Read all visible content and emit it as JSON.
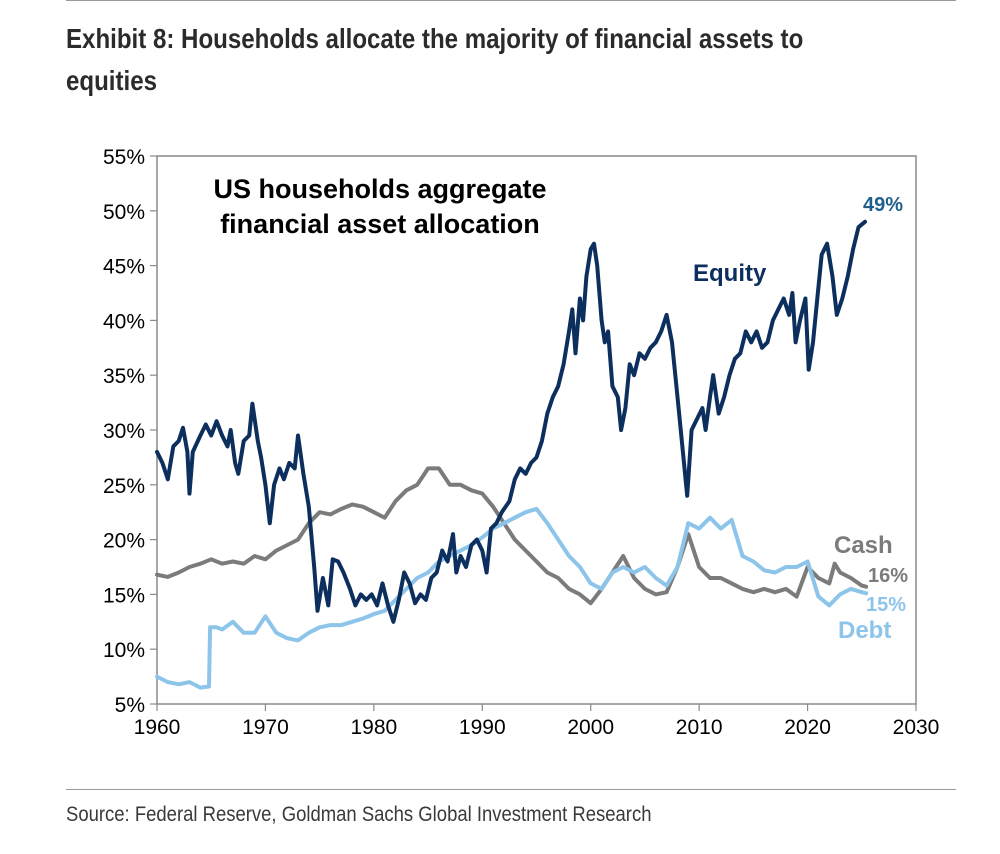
{
  "exhibit": {
    "title": "Exhibit 8: Households allocate the majority of financial assets to equities",
    "source": "Source: Federal Reserve, Goldman Sachs Global Investment Research"
  },
  "chart_data": {
    "type": "line",
    "title": "US households aggregate financial asset allocation",
    "xlabel": "",
    "ylabel": "",
    "xlim": [
      1960,
      2030
    ],
    "ylim": [
      5,
      55
    ],
    "x_ticks": [
      "1960",
      "1970",
      "1980",
      "1990",
      "2000",
      "2010",
      "2020",
      "2030"
    ],
    "y_ticks": [
      "5%",
      "10%",
      "15%",
      "20%",
      "25%",
      "30%",
      "35%",
      "40%",
      "45%",
      "50%",
      "55%"
    ],
    "grid": false,
    "series": [
      {
        "name": "Equity",
        "color": "#0d2f5e",
        "end_label": "49%",
        "points": [
          [
            1960,
            28
          ],
          [
            1960.5,
            27
          ],
          [
            1961,
            25.5
          ],
          [
            1961.5,
            28.5
          ],
          [
            1962,
            29
          ],
          [
            1962.4,
            30.2
          ],
          [
            1962.8,
            28
          ],
          [
            1963,
            24.2
          ],
          [
            1963.3,
            28
          ],
          [
            1964,
            29.5
          ],
          [
            1964.5,
            30.5
          ],
          [
            1965,
            29.5
          ],
          [
            1965.5,
            30.8
          ],
          [
            1966,
            29.5
          ],
          [
            1966.5,
            28.5
          ],
          [
            1966.8,
            30
          ],
          [
            1967.2,
            27
          ],
          [
            1967.5,
            26
          ],
          [
            1968,
            29
          ],
          [
            1968.5,
            29.5
          ],
          [
            1968.8,
            32.4
          ],
          [
            1969.3,
            29
          ],
          [
            1969.6,
            27.5
          ],
          [
            1970,
            25
          ],
          [
            1970.4,
            21.5
          ],
          [
            1970.8,
            25
          ],
          [
            1971.3,
            26.5
          ],
          [
            1971.7,
            25.5
          ],
          [
            1972.2,
            27
          ],
          [
            1972.7,
            26.5
          ],
          [
            1973,
            29.5
          ],
          [
            1973.5,
            26
          ],
          [
            1974,
            23
          ],
          [
            1974.5,
            17.5
          ],
          [
            1974.8,
            13.5
          ],
          [
            1975.3,
            16.5
          ],
          [
            1975.8,
            14
          ],
          [
            1976.2,
            18.2
          ],
          [
            1976.7,
            18
          ],
          [
            1977.2,
            17
          ],
          [
            1977.8,
            15.5
          ],
          [
            1978.3,
            14
          ],
          [
            1978.8,
            15
          ],
          [
            1979.3,
            14.5
          ],
          [
            1979.8,
            15
          ],
          [
            1980.3,
            14
          ],
          [
            1980.8,
            16
          ],
          [
            1981.3,
            14
          ],
          [
            1981.8,
            12.5
          ],
          [
            1982.3,
            14.5
          ],
          [
            1982.8,
            17
          ],
          [
            1983.3,
            16
          ],
          [
            1983.8,
            14.2
          ],
          [
            1984.3,
            15
          ],
          [
            1984.8,
            14.5
          ],
          [
            1985.3,
            16.5
          ],
          [
            1985.8,
            17
          ],
          [
            1986.3,
            19
          ],
          [
            1986.8,
            18
          ],
          [
            1987.3,
            20.5
          ],
          [
            1987.6,
            17
          ],
          [
            1988,
            18.5
          ],
          [
            1988.5,
            17.5
          ],
          [
            1989,
            19.5
          ],
          [
            1989.5,
            20
          ],
          [
            1990,
            19
          ],
          [
            1990.4,
            17
          ],
          [
            1990.8,
            21
          ],
          [
            1991.3,
            21.5
          ],
          [
            1991.8,
            22.5
          ],
          [
            1992.5,
            23.5
          ],
          [
            1993,
            25.5
          ],
          [
            1993.5,
            26.5
          ],
          [
            1994,
            26
          ],
          [
            1994.5,
            27
          ],
          [
            1995,
            27.5
          ],
          [
            1995.5,
            29
          ],
          [
            1996,
            31.5
          ],
          [
            1996.5,
            33
          ],
          [
            1997,
            34
          ],
          [
            1997.5,
            36
          ],
          [
            1998,
            39
          ],
          [
            1998.3,
            41
          ],
          [
            1998.6,
            37
          ],
          [
            1999,
            42
          ],
          [
            1999.3,
            40
          ],
          [
            1999.6,
            44
          ],
          [
            2000,
            46.5
          ],
          [
            2000.3,
            47
          ],
          [
            2000.6,
            45
          ],
          [
            2001,
            40
          ],
          [
            2001.3,
            38
          ],
          [
            2001.6,
            39
          ],
          [
            2002,
            34
          ],
          [
            2002.5,
            33
          ],
          [
            2002.8,
            30
          ],
          [
            2003.2,
            32
          ],
          [
            2003.6,
            36
          ],
          [
            2004,
            35
          ],
          [
            2004.5,
            37
          ],
          [
            2005,
            36.5
          ],
          [
            2005.5,
            37.5
          ],
          [
            2006,
            38
          ],
          [
            2006.5,
            39
          ],
          [
            2007,
            40.5
          ],
          [
            2007.5,
            38
          ],
          [
            2008,
            33
          ],
          [
            2008.5,
            28
          ],
          [
            2008.9,
            24
          ],
          [
            2009.3,
            30
          ],
          [
            2009.8,
            31
          ],
          [
            2010.3,
            32
          ],
          [
            2010.6,
            30
          ],
          [
            2011,
            33
          ],
          [
            2011.3,
            35
          ],
          [
            2011.8,
            31.5
          ],
          [
            2012.3,
            33
          ],
          [
            2012.8,
            35
          ],
          [
            2013.3,
            36.5
          ],
          [
            2013.8,
            37
          ],
          [
            2014.3,
            39
          ],
          [
            2014.8,
            38
          ],
          [
            2015.3,
            39
          ],
          [
            2015.8,
            37.5
          ],
          [
            2016.3,
            38
          ],
          [
            2016.8,
            40
          ],
          [
            2017.3,
            41
          ],
          [
            2017.8,
            42
          ],
          [
            2018.3,
            40.5
          ],
          [
            2018.6,
            42.5
          ],
          [
            2018.9,
            38
          ],
          [
            2019.3,
            40
          ],
          [
            2019.8,
            42
          ],
          [
            2020.1,
            35.5
          ],
          [
            2020.5,
            38
          ],
          [
            2020.9,
            42
          ],
          [
            2021.3,
            46
          ],
          [
            2021.8,
            47
          ],
          [
            2022.3,
            44
          ],
          [
            2022.7,
            40.5
          ],
          [
            2023.2,
            42
          ],
          [
            2023.7,
            44
          ],
          [
            2024.2,
            46.5
          ],
          [
            2024.7,
            48.5
          ],
          [
            2025.3,
            49
          ]
        ]
      },
      {
        "name": "Cash",
        "color": "#7b7b7b",
        "end_label": "16%",
        "points": [
          [
            1960,
            16.8
          ],
          [
            1961,
            16.6
          ],
          [
            1962,
            17
          ],
          [
            1963,
            17.5
          ],
          [
            1964,
            17.8
          ],
          [
            1965,
            18.2
          ],
          [
            1966,
            17.8
          ],
          [
            1967,
            18
          ],
          [
            1968,
            17.8
          ],
          [
            1969,
            18.5
          ],
          [
            1970,
            18.2
          ],
          [
            1971,
            19
          ],
          [
            1972,
            19.5
          ],
          [
            1973,
            20
          ],
          [
            1974,
            21.5
          ],
          [
            1975,
            22.5
          ],
          [
            1976,
            22.3
          ],
          [
            1977,
            22.8
          ],
          [
            1978,
            23.2
          ],
          [
            1979,
            23
          ],
          [
            1980,
            22.5
          ],
          [
            1981,
            22
          ],
          [
            1982,
            23.5
          ],
          [
            1983,
            24.5
          ],
          [
            1984,
            25
          ],
          [
            1985,
            26.5
          ],
          [
            1986,
            26.5
          ],
          [
            1987,
            25
          ],
          [
            1988,
            25
          ],
          [
            1989,
            24.5
          ],
          [
            1990,
            24.2
          ],
          [
            1991,
            23
          ],
          [
            1992,
            21.5
          ],
          [
            1993,
            20
          ],
          [
            1994,
            19
          ],
          [
            1995,
            18
          ],
          [
            1996,
            17
          ],
          [
            1997,
            16.5
          ],
          [
            1998,
            15.5
          ],
          [
            1999,
            15
          ],
          [
            2000,
            14.2
          ],
          [
            2001,
            15.5
          ],
          [
            2002,
            17
          ],
          [
            2003,
            18.5
          ],
          [
            2004,
            16.5
          ],
          [
            2005,
            15.5
          ],
          [
            2006,
            15
          ],
          [
            2007,
            15.2
          ],
          [
            2008,
            17.5
          ],
          [
            2009,
            20.5
          ],
          [
            2010,
            17.5
          ],
          [
            2011,
            16.5
          ],
          [
            2012,
            16.5
          ],
          [
            2013,
            16
          ],
          [
            2014,
            15.5
          ],
          [
            2015,
            15.2
          ],
          [
            2016,
            15.5
          ],
          [
            2017,
            15.2
          ],
          [
            2018,
            15.5
          ],
          [
            2019,
            14.8
          ],
          [
            2020,
            17.5
          ],
          [
            2021,
            16.5
          ],
          [
            2022,
            16
          ],
          [
            2022.5,
            17.8
          ],
          [
            2023,
            17
          ],
          [
            2024,
            16.5
          ],
          [
            2025,
            15.8
          ],
          [
            2025.4,
            15.7
          ]
        ]
      },
      {
        "name": "Debt",
        "color": "#8dc4ea",
        "end_label": "15%",
        "points": [
          [
            1960,
            7.5
          ],
          [
            1961,
            7
          ],
          [
            1962,
            6.8
          ],
          [
            1963,
            7
          ],
          [
            1964,
            6.5
          ],
          [
            1964.8,
            6.6
          ],
          [
            1964.9,
            12
          ],
          [
            1965.5,
            12
          ],
          [
            1966,
            11.8
          ],
          [
            1967,
            12.5
          ],
          [
            1968,
            11.5
          ],
          [
            1969,
            11.5
          ],
          [
            1970,
            13
          ],
          [
            1971,
            11.5
          ],
          [
            1972,
            11
          ],
          [
            1973,
            10.8
          ],
          [
            1974,
            11.5
          ],
          [
            1975,
            12
          ],
          [
            1976,
            12.2
          ],
          [
            1977,
            12.2
          ],
          [
            1978,
            12.5
          ],
          [
            1979,
            12.8
          ],
          [
            1980,
            13.2
          ],
          [
            1981,
            13.5
          ],
          [
            1982,
            14.5
          ],
          [
            1983,
            15.5
          ],
          [
            1984,
            16.5
          ],
          [
            1985,
            17
          ],
          [
            1986,
            18
          ],
          [
            1987,
            18.5
          ],
          [
            1988,
            19
          ],
          [
            1989,
            19.5
          ],
          [
            1990,
            20.2
          ],
          [
            1991,
            21
          ],
          [
            1992,
            21.5
          ],
          [
            1993,
            22
          ],
          [
            1994,
            22.5
          ],
          [
            1995,
            22.8
          ],
          [
            1996,
            21.5
          ],
          [
            1997,
            20
          ],
          [
            1998,
            18.5
          ],
          [
            1999,
            17.5
          ],
          [
            2000,
            16
          ],
          [
            2001,
            15.5
          ],
          [
            2002,
            17
          ],
          [
            2003,
            17.5
          ],
          [
            2004,
            17
          ],
          [
            2005,
            17.5
          ],
          [
            2006,
            16.5
          ],
          [
            2007,
            15.8
          ],
          [
            2008,
            17.5
          ],
          [
            2009,
            21.5
          ],
          [
            2010,
            21
          ],
          [
            2011,
            22
          ],
          [
            2012,
            21
          ],
          [
            2013,
            21.8
          ],
          [
            2014,
            18.5
          ],
          [
            2015,
            18
          ],
          [
            2016,
            17.2
          ],
          [
            2017,
            17
          ],
          [
            2018,
            17.5
          ],
          [
            2019,
            17.5
          ],
          [
            2020,
            18
          ],
          [
            2021,
            14.8
          ],
          [
            2022,
            14
          ],
          [
            2023,
            15
          ],
          [
            2024,
            15.5
          ],
          [
            2025,
            15.2
          ],
          [
            2025.4,
            15.1
          ]
        ]
      }
    ],
    "annotations": [
      {
        "text": "Equity",
        "color": "#0d2f5e"
      },
      {
        "text": "Cash",
        "color": "#7b7b7b"
      },
      {
        "text": "Debt",
        "color": "#8dc4ea"
      }
    ]
  }
}
